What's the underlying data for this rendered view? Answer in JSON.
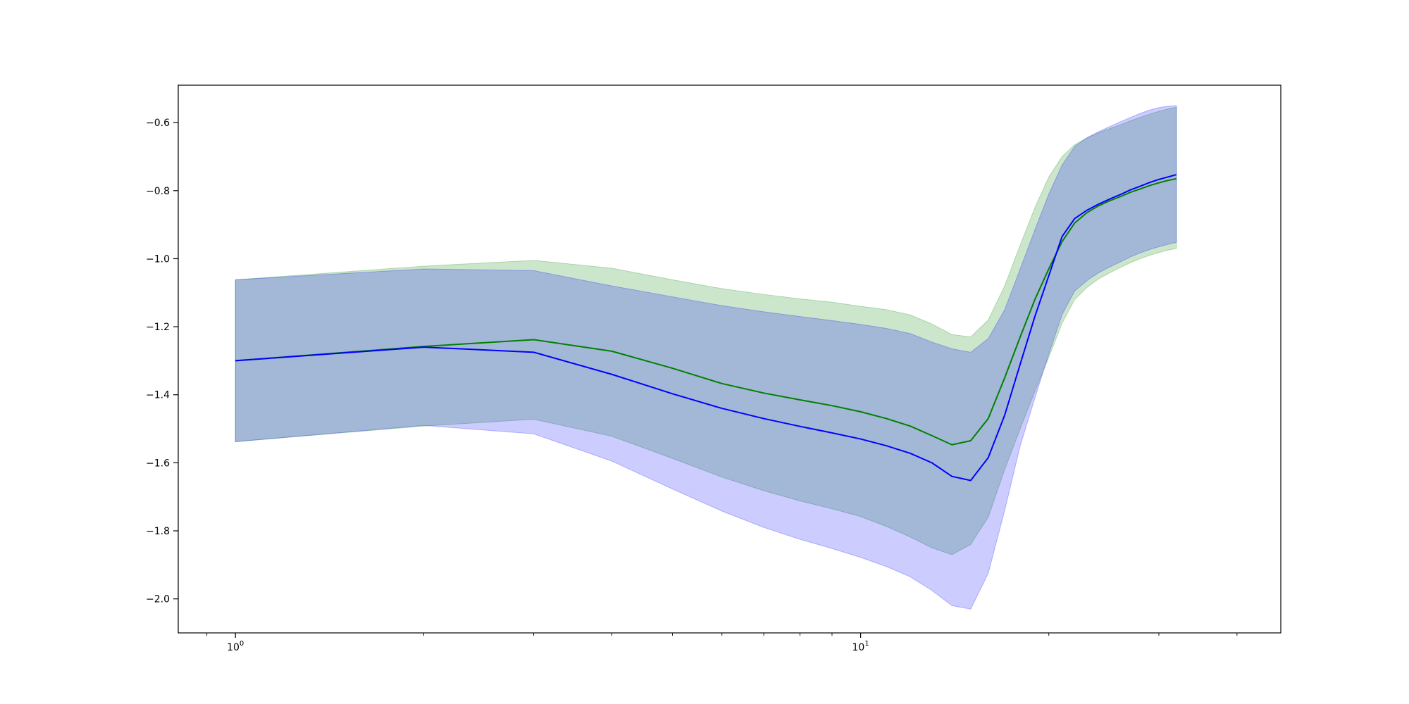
{
  "chart_data": {
    "type": "line",
    "title": "",
    "xlabel": "",
    "ylabel": "",
    "xscale": "log",
    "xlim": [
      0.81,
      47.0
    ],
    "ylim": [
      -2.1,
      -0.49
    ],
    "x_ticks": [
      {
        "value": 1,
        "base": "10",
        "exp": "0"
      },
      {
        "value": 10,
        "base": "10",
        "exp": "1"
      }
    ],
    "y_ticks": [
      {
        "value": -0.6,
        "label": "−0.6"
      },
      {
        "value": -0.8,
        "label": "−0.8"
      },
      {
        "value": -1.0,
        "label": "−1.0"
      },
      {
        "value": -1.2,
        "label": "−1.2"
      },
      {
        "value": -1.4,
        "label": "−1.4"
      },
      {
        "value": -1.6,
        "label": "−1.6"
      },
      {
        "value": -1.8,
        "label": "−1.8"
      },
      {
        "value": -2.0,
        "label": "−2.0"
      }
    ],
    "grid": false,
    "legend": false,
    "x": [
      1,
      2,
      3,
      4,
      5,
      6,
      7,
      8,
      9,
      10,
      11,
      12,
      13,
      14,
      15,
      16,
      17,
      18,
      19,
      20,
      21,
      22,
      23,
      24,
      25,
      26,
      27,
      28,
      29,
      30,
      31,
      32
    ],
    "series": [
      {
        "color": "#008000",
        "band_color": "#008000",
        "mean": [
          -1.3,
          -1.258,
          -1.238,
          -1.272,
          -1.322,
          -1.367,
          -1.395,
          -1.415,
          -1.432,
          -1.45,
          -1.47,
          -1.492,
          -1.52,
          -1.547,
          -1.535,
          -1.47,
          -1.35,
          -1.23,
          -1.12,
          -1.03,
          -0.95,
          -0.895,
          -0.865,
          -0.845,
          -0.83,
          -0.818,
          -0.805,
          -0.795,
          -0.785,
          -0.777,
          -0.77,
          -0.765
        ],
        "upper": [
          -1.062,
          -1.022,
          -1.005,
          -1.028,
          -1.062,
          -1.088,
          -1.105,
          -1.118,
          -1.128,
          -1.14,
          -1.15,
          -1.165,
          -1.192,
          -1.223,
          -1.23,
          -1.18,
          -1.08,
          -0.96,
          -0.85,
          -0.76,
          -0.7,
          -0.665,
          -0.645,
          -0.63,
          -0.618,
          -0.607,
          -0.595,
          -0.585,
          -0.575,
          -0.567,
          -0.56,
          -0.555
        ],
        "lower": [
          -1.538,
          -1.492,
          -1.472,
          -1.522,
          -1.587,
          -1.642,
          -1.682,
          -1.712,
          -1.735,
          -1.758,
          -1.787,
          -1.818,
          -1.85,
          -1.87,
          -1.84,
          -1.76,
          -1.62,
          -1.5,
          -1.39,
          -1.29,
          -1.19,
          -1.12,
          -1.085,
          -1.06,
          -1.042,
          -1.026,
          -1.012,
          -1.0,
          -0.99,
          -0.982,
          -0.975,
          -0.97
        ]
      },
      {
        "color": "#0000ff",
        "band_color": "#0000ff",
        "mean": [
          -1.3,
          -1.26,
          -1.275,
          -1.34,
          -1.397,
          -1.44,
          -1.47,
          -1.493,
          -1.512,
          -1.53,
          -1.55,
          -1.572,
          -1.6,
          -1.64,
          -1.652,
          -1.585,
          -1.46,
          -1.31,
          -1.17,
          -1.05,
          -0.935,
          -0.882,
          -0.858,
          -0.84,
          -0.825,
          -0.812,
          -0.798,
          -0.787,
          -0.776,
          -0.767,
          -0.76,
          -0.753
        ],
        "upper": [
          -1.062,
          -1.03,
          -1.035,
          -1.08,
          -1.112,
          -1.138,
          -1.156,
          -1.17,
          -1.182,
          -1.193,
          -1.205,
          -1.22,
          -1.245,
          -1.265,
          -1.275,
          -1.235,
          -1.15,
          -1.03,
          -0.915,
          -0.81,
          -0.725,
          -0.67,
          -0.645,
          -0.627,
          -0.612,
          -0.598,
          -0.585,
          -0.573,
          -0.563,
          -0.556,
          -0.552,
          -0.55
        ],
        "lower": [
          -1.538,
          -1.49,
          -1.515,
          -1.595,
          -1.677,
          -1.742,
          -1.79,
          -1.825,
          -1.852,
          -1.878,
          -1.905,
          -1.935,
          -1.975,
          -2.02,
          -2.03,
          -1.925,
          -1.74,
          -1.55,
          -1.41,
          -1.28,
          -1.165,
          -1.095,
          -1.065,
          -1.042,
          -1.025,
          -1.01,
          -0.995,
          -0.983,
          -0.973,
          -0.965,
          -0.958,
          -0.952
        ]
      }
    ]
  }
}
